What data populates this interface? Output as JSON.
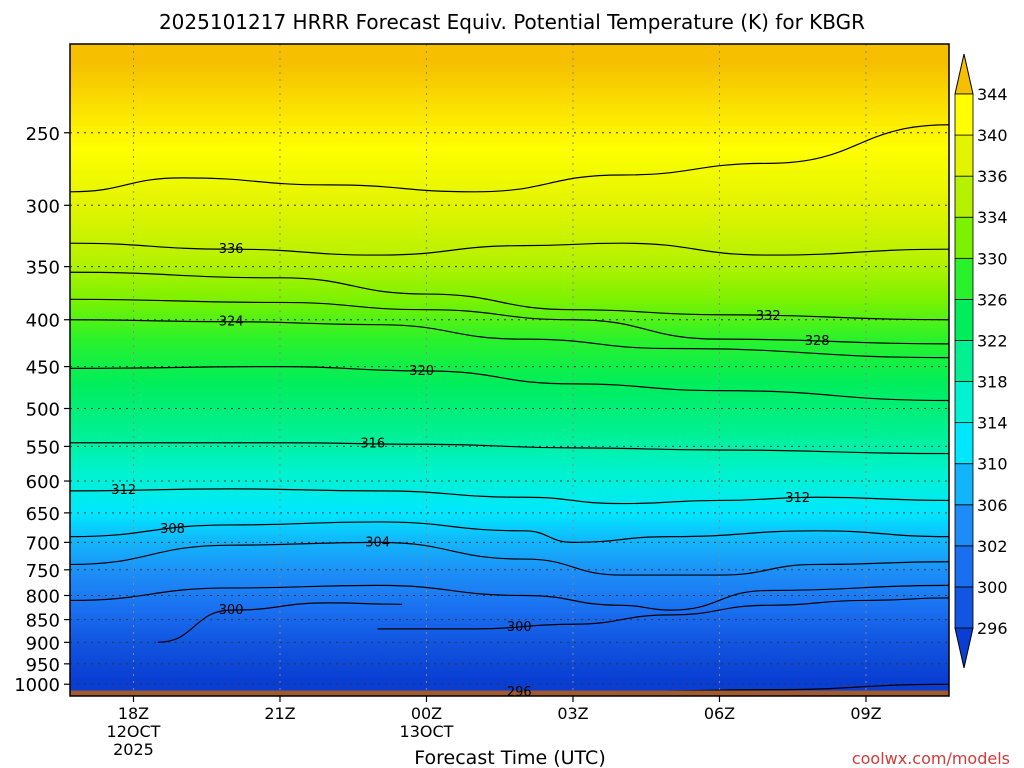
{
  "title": "2025101217 HRRR Forecast Equiv. Potential Temperature (K) for KBGR",
  "credit": "coolwx.com/models",
  "chart_data": {
    "type": "heatmap",
    "title": "2025101217 HRRR Forecast Equiv. Potential Temperature (K) for KBGR",
    "xlabel": "Forecast Time (UTC)",
    "ylabel": "",
    "x_range_hours": [
      -0.3,
      17.7
    ],
    "y_range_hpa": [
      1030,
      200
    ],
    "y_scale": "log",
    "x_ticks": [
      {
        "hour": 1,
        "label": "18Z",
        "date": "12OCT",
        "year": "2025"
      },
      {
        "hour": 4,
        "label": "21Z",
        "date": "",
        "year": ""
      },
      {
        "hour": 7,
        "label": "00Z",
        "date": "13OCT",
        "year": ""
      },
      {
        "hour": 10,
        "label": "03Z",
        "date": "",
        "year": ""
      },
      {
        "hour": 13,
        "label": "06Z",
        "date": "",
        "year": ""
      },
      {
        "hour": 16,
        "label": "09Z",
        "date": "",
        "year": ""
      }
    ],
    "y_ticks": [
      {
        "p": 250,
        "label": "250"
      },
      {
        "p": 300,
        "label": "300"
      },
      {
        "p": 350,
        "label": "350"
      },
      {
        "p": 400,
        "label": "400"
      },
      {
        "p": 450,
        "label": "450"
      },
      {
        "p": 500,
        "label": "500"
      },
      {
        "p": 550,
        "label": "550"
      },
      {
        "p": 600,
        "label": "600"
      },
      {
        "p": 650,
        "label": "650"
      },
      {
        "p": 700,
        "label": "700"
      },
      {
        "p": 750,
        "label": "750"
      },
      {
        "p": 800,
        "label": "800"
      },
      {
        "p": 850,
        "label": "850"
      },
      {
        "p": 900,
        "label": "900"
      },
      {
        "p": 950,
        "label": "950"
      },
      {
        "p": 1000,
        "label": "1000"
      }
    ],
    "grid": true,
    "colorbar": {
      "placement": "right",
      "levels": [
        296,
        300,
        302,
        306,
        310,
        314,
        318,
        322,
        326,
        330,
        334,
        336,
        340,
        344
      ],
      "labels": [
        "296",
        "300",
        "302",
        "306",
        "310",
        "314",
        "318",
        "322",
        "326",
        "330",
        "334",
        "336",
        "340",
        "344"
      ],
      "colors": [
        "#0a3ed2",
        "#1155e0",
        "#1a6ff0",
        "#1d8cf7",
        "#12b5fb",
        "#00e7ff",
        "#00f3d0",
        "#00f092",
        "#00ee5c",
        "#2af22a",
        "#7df200",
        "#b6f200",
        "#e2f400",
        "#ffff00",
        "#f6c000"
      ]
    },
    "contours": [
      {
        "level": 296,
        "label": "296",
        "label_hour": 8.9,
        "pressure_at_hours": [
          [
            0,
            1022
          ],
          [
            4,
            1022
          ],
          [
            8,
            1020
          ],
          [
            11,
            1018
          ],
          [
            14,
            1014
          ],
          [
            17.7,
            1000
          ]
        ]
      },
      {
        "level": 300,
        "label": "300",
        "label_hour": 3.0,
        "pressure_at_hours": [
          [
            1.5,
            900
          ],
          [
            3,
            830
          ],
          [
            5,
            815
          ],
          [
            6.5,
            818
          ]
        ]
      },
      {
        "level": 300,
        "label": "300",
        "label_hour": 8.9,
        "pressure_at_hours": [
          [
            6,
            870
          ],
          [
            8,
            870
          ],
          [
            10,
            860
          ],
          [
            12,
            840
          ],
          [
            14,
            820
          ],
          [
            16,
            810
          ],
          [
            17.7,
            805
          ]
        ]
      },
      {
        "level": 302,
        "label": "",
        "label_hour": null,
        "pressure_at_hours": [
          [
            -0.3,
            810
          ],
          [
            3,
            785
          ],
          [
            6,
            780
          ],
          [
            9,
            800
          ],
          [
            11,
            820
          ],
          [
            12,
            830
          ],
          [
            14,
            790
          ],
          [
            17.7,
            780
          ]
        ]
      },
      {
        "level": 304,
        "label": "304",
        "label_hour": 6.0,
        "pressure_at_hours": [
          [
            -0.3,
            740
          ],
          [
            3,
            705
          ],
          [
            6,
            700
          ],
          [
            9,
            730
          ],
          [
            11,
            760
          ],
          [
            13,
            760
          ],
          [
            15,
            740
          ],
          [
            17.7,
            735
          ]
        ]
      },
      {
        "level": 308,
        "label": "308",
        "label_hour": 1.8,
        "pressure_at_hours": [
          [
            -0.3,
            690
          ],
          [
            3,
            670
          ],
          [
            6,
            665
          ],
          [
            9,
            680
          ],
          [
            10,
            700
          ],
          [
            12,
            690
          ],
          [
            15,
            680
          ],
          [
            17.7,
            690
          ]
        ]
      },
      {
        "level": 312,
        "label": "312",
        "label_hour": 0.8,
        "pressure_at_hours": [
          [
            -0.3,
            615
          ],
          [
            3,
            612
          ],
          [
            6,
            615
          ],
          [
            9,
            625
          ],
          [
            11,
            635
          ],
          [
            13,
            630
          ],
          [
            15,
            625
          ],
          [
            17.7,
            630
          ]
        ]
      },
      {
        "level": 312,
        "label": "312",
        "label_hour": 14.6,
        "pressure_at_hours": []
      },
      {
        "level": 316,
        "label": "316",
        "label_hour": 5.9,
        "pressure_at_hours": [
          [
            -0.3,
            545
          ],
          [
            4,
            545
          ],
          [
            7,
            547
          ],
          [
            10,
            552
          ],
          [
            13,
            555
          ],
          [
            17.7,
            560
          ]
        ]
      },
      {
        "level": 320,
        "label": "320",
        "label_hour": 6.9,
        "pressure_at_hours": [
          [
            -0.3,
            452
          ],
          [
            4,
            450
          ],
          [
            7,
            455
          ],
          [
            10,
            470
          ],
          [
            13,
            478
          ],
          [
            17.7,
            490
          ]
        ]
      },
      {
        "level": 324,
        "label": "324",
        "label_hour": 3.0,
        "pressure_at_hours": [
          [
            -0.3,
            400
          ],
          [
            3,
            402
          ],
          [
            6,
            405
          ],
          [
            9,
            420
          ],
          [
            12,
            430
          ],
          [
            17.7,
            440
          ]
        ]
      },
      {
        "level": 328,
        "label": "328",
        "label_hour": 15.0,
        "pressure_at_hours": [
          [
            -0.3,
            380
          ],
          [
            4,
            383
          ],
          [
            7,
            390
          ],
          [
            10,
            400
          ],
          [
            13,
            420
          ],
          [
            17.7,
            425
          ]
        ]
      },
      {
        "level": 332,
        "label": "332",
        "label_hour": 14.0,
        "pressure_at_hours": [
          [
            -0.3,
            355
          ],
          [
            4,
            360
          ],
          [
            7,
            375
          ],
          [
            10,
            390
          ],
          [
            13,
            395
          ],
          [
            17.7,
            400
          ]
        ]
      },
      {
        "level": 336,
        "label": "336",
        "label_hour": 3.0,
        "pressure_at_hours": [
          [
            -0.3,
            330
          ],
          [
            3,
            335
          ],
          [
            6,
            340
          ],
          [
            9,
            332
          ],
          [
            11,
            330
          ],
          [
            14,
            340
          ],
          [
            17.7,
            335
          ]
        ]
      },
      {
        "level": 340,
        "label": "",
        "label_hour": null,
        "pressure_at_hours": [
          [
            -0.3,
            290
          ],
          [
            2,
            280
          ],
          [
            5,
            285
          ],
          [
            8,
            290
          ],
          [
            11,
            278
          ],
          [
            14,
            270
          ],
          [
            17.7,
            245
          ]
        ]
      }
    ],
    "surface_band": {
      "color": "#a05a2c",
      "p_top": 1016
    }
  }
}
